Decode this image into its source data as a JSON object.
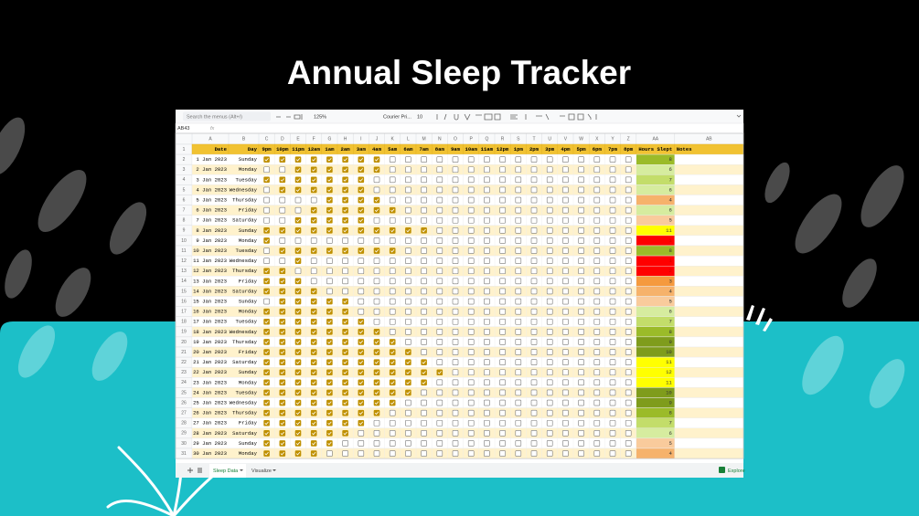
{
  "title": "Annual Sleep Tracker",
  "toolbar": {
    "search": "Search the menus (Alt+/)",
    "zoom": "125%",
    "font": "Courier Pri...",
    "font_size": "10"
  },
  "formula_bar": {
    "cell": "AB43",
    "fx": "fx"
  },
  "sheet": {
    "column_letters": [
      "A",
      "B",
      "C",
      "D",
      "E",
      "F",
      "G",
      "H",
      "I",
      "J",
      "K",
      "L",
      "M",
      "N",
      "O",
      "P",
      "Q",
      "R",
      "S",
      "T",
      "U",
      "V",
      "W",
      "X",
      "Y",
      "Z",
      "AA",
      "AB"
    ],
    "row_numbers": [
      1,
      2,
      3,
      4,
      5,
      6,
      7,
      8,
      9,
      10,
      11,
      12,
      13,
      14,
      15,
      16,
      17,
      18,
      19,
      20,
      21,
      22,
      23,
      24,
      25,
      26,
      27,
      28,
      29,
      30,
      31
    ],
    "header": [
      "Date",
      "Day",
      "9pm",
      "10pm",
      "11pm",
      "12am",
      "1am",
      "2am",
      "3am",
      "4am",
      "5am",
      "6am",
      "7am",
      "8am",
      "9am",
      "10am",
      "11am",
      "12pm",
      "1pm",
      "2pm",
      "3pm",
      "4pm",
      "5pm",
      "6pm",
      "7pm",
      "8pm",
      "Hours Slept",
      "Notes"
    ],
    "rows": [
      {
        "date": "1 Jan 2023",
        "day": "Sunday",
        "checks": [
          1,
          1,
          1,
          1,
          1,
          1,
          1,
          1,
          0,
          0,
          0,
          0,
          0,
          0,
          0,
          0,
          0,
          0,
          0,
          0,
          0,
          0,
          0,
          0
        ],
        "hours": 8
      },
      {
        "date": "2 Jan 2023",
        "day": "Monday",
        "checks": [
          0,
          0,
          1,
          1,
          1,
          1,
          1,
          1,
          0,
          0,
          0,
          0,
          0,
          0,
          0,
          0,
          0,
          0,
          0,
          0,
          0,
          0,
          0,
          0
        ],
        "hours": 6
      },
      {
        "date": "3 Jan 2023",
        "day": "Tuesday",
        "checks": [
          1,
          1,
          1,
          1,
          1,
          1,
          1,
          0,
          0,
          0,
          0,
          0,
          0,
          0,
          0,
          0,
          0,
          0,
          0,
          0,
          0,
          0,
          0,
          0
        ],
        "hours": 7
      },
      {
        "date": "4 Jan 2023",
        "day": "Wednesday",
        "checks": [
          0,
          1,
          1,
          1,
          1,
          1,
          1,
          0,
          0,
          0,
          0,
          0,
          0,
          0,
          0,
          0,
          0,
          0,
          0,
          0,
          0,
          0,
          0,
          0
        ],
        "hours": 6
      },
      {
        "date": "5 Jan 2023",
        "day": "Thursday",
        "checks": [
          0,
          0,
          0,
          0,
          1,
          1,
          1,
          1,
          0,
          0,
          0,
          0,
          0,
          0,
          0,
          0,
          0,
          0,
          0,
          0,
          0,
          0,
          0,
          0
        ],
        "hours": 4
      },
      {
        "date": "6 Jan 2023",
        "day": "Friday",
        "checks": [
          0,
          0,
          0,
          1,
          1,
          1,
          1,
          1,
          1,
          0,
          0,
          0,
          0,
          0,
          0,
          0,
          0,
          0,
          0,
          0,
          0,
          0,
          0,
          0
        ],
        "hours": 6
      },
      {
        "date": "7 Jan 2023",
        "day": "Saturday",
        "checks": [
          0,
          0,
          1,
          1,
          1,
          1,
          1,
          0,
          0,
          0,
          0,
          0,
          0,
          0,
          0,
          0,
          0,
          0,
          0,
          0,
          0,
          0,
          0,
          0
        ],
        "hours": 5
      },
      {
        "date": "8 Jan 2023",
        "day": "Sunday",
        "checks": [
          1,
          1,
          1,
          1,
          1,
          1,
          1,
          1,
          1,
          1,
          1,
          0,
          0,
          0,
          0,
          0,
          0,
          0,
          0,
          0,
          0,
          0,
          0,
          0
        ],
        "hours": 11
      },
      {
        "date": "9 Jan 2023",
        "day": "Monday",
        "checks": [
          1,
          0,
          0,
          0,
          0,
          0,
          0,
          0,
          0,
          0,
          0,
          0,
          0,
          0,
          0,
          0,
          0,
          0,
          0,
          0,
          0,
          0,
          0,
          0
        ],
        "hours": 1
      },
      {
        "date": "10 Jan 2023",
        "day": "Tuesday",
        "checks": [
          0,
          1,
          1,
          1,
          1,
          1,
          1,
          1,
          1,
          0,
          0,
          0,
          0,
          0,
          0,
          0,
          0,
          0,
          0,
          0,
          0,
          0,
          0,
          0
        ],
        "hours": 8
      },
      {
        "date": "11 Jan 2023",
        "day": "Wednesday",
        "checks": [
          0,
          0,
          1,
          0,
          0,
          0,
          0,
          0,
          0,
          0,
          0,
          0,
          0,
          0,
          0,
          0,
          0,
          0,
          0,
          0,
          0,
          0,
          0,
          0
        ],
        "hours": 1
      },
      {
        "date": "12 Jan 2023",
        "day": "Thursday",
        "checks": [
          1,
          1,
          0,
          0,
          0,
          0,
          0,
          0,
          0,
          0,
          0,
          0,
          0,
          0,
          0,
          0,
          0,
          0,
          0,
          0,
          0,
          0,
          0,
          0
        ],
        "hours": 2
      },
      {
        "date": "13 Jan 2023",
        "day": "Friday",
        "checks": [
          1,
          1,
          1,
          0,
          0,
          0,
          0,
          0,
          0,
          0,
          0,
          0,
          0,
          0,
          0,
          0,
          0,
          0,
          0,
          0,
          0,
          0,
          0,
          0
        ],
        "hours": 3
      },
      {
        "date": "14 Jan 2023",
        "day": "Saturday",
        "checks": [
          1,
          1,
          1,
          1,
          0,
          0,
          0,
          0,
          0,
          0,
          0,
          0,
          0,
          0,
          0,
          0,
          0,
          0,
          0,
          0,
          0,
          0,
          0,
          0
        ],
        "hours": 4
      },
      {
        "date": "15 Jan 2023",
        "day": "Sunday",
        "checks": [
          0,
          1,
          1,
          1,
          1,
          1,
          0,
          0,
          0,
          0,
          0,
          0,
          0,
          0,
          0,
          0,
          0,
          0,
          0,
          0,
          0,
          0,
          0,
          0
        ],
        "hours": 5
      },
      {
        "date": "16 Jan 2023",
        "day": "Monday",
        "checks": [
          1,
          1,
          1,
          1,
          1,
          1,
          0,
          0,
          0,
          0,
          0,
          0,
          0,
          0,
          0,
          0,
          0,
          0,
          0,
          0,
          0,
          0,
          0,
          0
        ],
        "hours": 6
      },
      {
        "date": "17 Jan 2023",
        "day": "Tuesday",
        "checks": [
          1,
          1,
          1,
          1,
          1,
          1,
          1,
          0,
          0,
          0,
          0,
          0,
          0,
          0,
          0,
          0,
          0,
          0,
          0,
          0,
          0,
          0,
          0,
          0
        ],
        "hours": 7
      },
      {
        "date": "18 Jan 2023",
        "day": "Wednesday",
        "checks": [
          1,
          1,
          1,
          1,
          1,
          1,
          1,
          1,
          0,
          0,
          0,
          0,
          0,
          0,
          0,
          0,
          0,
          0,
          0,
          0,
          0,
          0,
          0,
          0
        ],
        "hours": 8
      },
      {
        "date": "19 Jan 2023",
        "day": "Thursday",
        "checks": [
          1,
          1,
          1,
          1,
          1,
          1,
          1,
          1,
          1,
          0,
          0,
          0,
          0,
          0,
          0,
          0,
          0,
          0,
          0,
          0,
          0,
          0,
          0,
          0
        ],
        "hours": 9
      },
      {
        "date": "20 Jan 2023",
        "day": "Friday",
        "checks": [
          1,
          1,
          1,
          1,
          1,
          1,
          1,
          1,
          1,
          1,
          0,
          0,
          0,
          0,
          0,
          0,
          0,
          0,
          0,
          0,
          0,
          0,
          0,
          0
        ],
        "hours": 10
      },
      {
        "date": "21 Jan 2023",
        "day": "Saturday",
        "checks": [
          1,
          1,
          1,
          1,
          1,
          1,
          1,
          1,
          1,
          1,
          1,
          0,
          0,
          0,
          0,
          0,
          0,
          0,
          0,
          0,
          0,
          0,
          0,
          0
        ],
        "hours": 11
      },
      {
        "date": "22 Jan 2023",
        "day": "Sunday",
        "checks": [
          1,
          1,
          1,
          1,
          1,
          1,
          1,
          1,
          1,
          1,
          1,
          1,
          0,
          0,
          0,
          0,
          0,
          0,
          0,
          0,
          0,
          0,
          0,
          0
        ],
        "hours": 12
      },
      {
        "date": "23 Jan 2023",
        "day": "Monday",
        "checks": [
          1,
          1,
          1,
          1,
          1,
          1,
          1,
          1,
          1,
          1,
          1,
          0,
          0,
          0,
          0,
          0,
          0,
          0,
          0,
          0,
          0,
          0,
          0,
          0
        ],
        "hours": 11
      },
      {
        "date": "24 Jan 2023",
        "day": "Tuesday",
        "checks": [
          1,
          1,
          1,
          1,
          1,
          1,
          1,
          1,
          1,
          1,
          0,
          0,
          0,
          0,
          0,
          0,
          0,
          0,
          0,
          0,
          0,
          0,
          0,
          0
        ],
        "hours": 10
      },
      {
        "date": "25 Jan 2023",
        "day": "Wednesday",
        "checks": [
          1,
          1,
          1,
          1,
          1,
          1,
          1,
          1,
          1,
          0,
          0,
          0,
          0,
          0,
          0,
          0,
          0,
          0,
          0,
          0,
          0,
          0,
          0,
          0
        ],
        "hours": 9
      },
      {
        "date": "26 Jan 2023",
        "day": "Thursday",
        "checks": [
          1,
          1,
          1,
          1,
          1,
          1,
          1,
          1,
          0,
          0,
          0,
          0,
          0,
          0,
          0,
          0,
          0,
          0,
          0,
          0,
          0,
          0,
          0,
          0
        ],
        "hours": 8
      },
      {
        "date": "27 Jan 2023",
        "day": "Friday",
        "checks": [
          1,
          1,
          1,
          1,
          1,
          1,
          1,
          0,
          0,
          0,
          0,
          0,
          0,
          0,
          0,
          0,
          0,
          0,
          0,
          0,
          0,
          0,
          0,
          0
        ],
        "hours": 7
      },
      {
        "date": "28 Jan 2023",
        "day": "Saturday",
        "checks": [
          1,
          1,
          1,
          1,
          1,
          1,
          0,
          0,
          0,
          0,
          0,
          0,
          0,
          0,
          0,
          0,
          0,
          0,
          0,
          0,
          0,
          0,
          0,
          0
        ],
        "hours": 6
      },
      {
        "date": "29 Jan 2023",
        "day": "Sunday",
        "checks": [
          1,
          1,
          1,
          1,
          1,
          0,
          0,
          0,
          0,
          0,
          0,
          0,
          0,
          0,
          0,
          0,
          0,
          0,
          0,
          0,
          0,
          0,
          0,
          0
        ],
        "hours": 5
      },
      {
        "date": "30 Jan 2023",
        "day": "Monday",
        "checks": [
          1,
          1,
          1,
          1,
          0,
          0,
          0,
          0,
          0,
          0,
          0,
          0,
          0,
          0,
          0,
          0,
          0,
          0,
          0,
          0,
          0,
          0,
          0,
          0
        ],
        "hours": 4
      }
    ]
  },
  "tabs": [
    "Sleep Data",
    "Visualize"
  ],
  "explore": "Explore"
}
